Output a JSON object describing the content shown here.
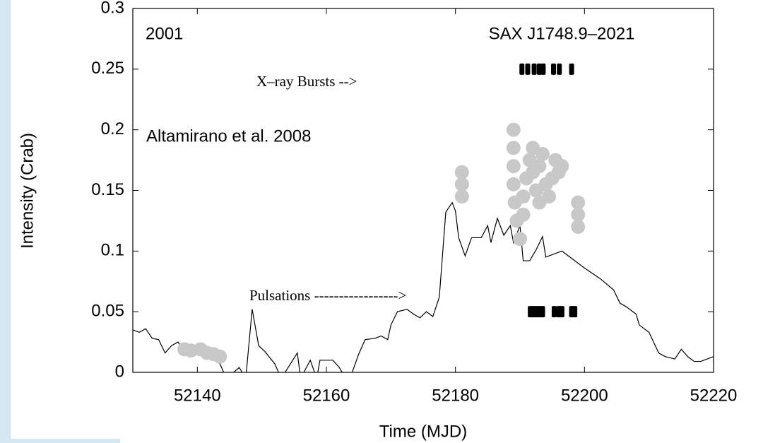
{
  "chart_data": {
    "type": "line",
    "title": "SAX J1748.9–2021",
    "annotations": [
      "2001",
      "Altamirano et al. 2008",
      "X–ray Bursts -->",
      "Pulsations ----------------->"
    ],
    "xlabel": "Time (MJD)",
    "ylabel": "Intensity (Crab)",
    "xlim": [
      52130,
      52220
    ],
    "ylim": [
      0,
      0.3
    ],
    "xticks": [
      52140,
      52160,
      52180,
      52200,
      52220
    ],
    "yticks": [
      0,
      0.05,
      0.1,
      0.15,
      0.2,
      0.25,
      0.3
    ],
    "series": [
      {
        "type": "line",
        "color": "#000000",
        "x": [
          52130,
          52131,
          52132,
          52133,
          52134,
          52135,
          52136,
          52137,
          52138,
          52140,
          52141,
          52142,
          52143.5,
          52144.5,
          52146.5,
          52147.5,
          52148.5,
          52149.5,
          52150.5,
          52152,
          52153,
          52155.5,
          52156,
          52157.5,
          52158.5,
          52159,
          52161,
          52162,
          52163,
          52164,
          52165,
          52166,
          52167.5,
          52168.5,
          52169.5,
          52170,
          52171,
          52172.5,
          52173.5,
          52174.5,
          52175.5,
          52176.5,
          52177.5,
          52178.5,
          52179.5,
          52180,
          52180.5,
          52181.5,
          52182.5,
          52184,
          52185,
          52185.5,
          52186.5,
          52187.5,
          52188.5,
          52189,
          52190,
          52190.5,
          52191.5,
          52192.5,
          52193.5,
          52194,
          52195,
          52196.5,
          52198,
          52200,
          52202.5,
          52204.5,
          52205.5,
          52206.5,
          52208,
          52208.5,
          52210,
          52211.5,
          52212.5,
          52214,
          52215,
          52216,
          52217,
          52218,
          52220
        ],
        "values": [
          0.035,
          0.033,
          0.036,
          0.028,
          0.027,
          0.016,
          0.022,
          0.025,
          0.017,
          0.022,
          0.013,
          0.016,
          0.007,
          -0.005,
          0.004,
          -0.005,
          0.052,
          0.022,
          0.017,
          0.007,
          -0.005,
          0.016,
          -0.005,
          0.01,
          -0.005,
          0.01,
          0.01,
          0.004,
          -0.005,
          0.0,
          0.015,
          0.027,
          0.028,
          0.03,
          0.027,
          0.039,
          0.05,
          0.052,
          0.048,
          0.045,
          0.05,
          0.046,
          0.062,
          0.132,
          0.14,
          0.133,
          0.111,
          0.096,
          0.111,
          0.111,
          0.121,
          0.107,
          0.127,
          0.113,
          0.121,
          0.107,
          0.121,
          0.092,
          0.092,
          0.101,
          0.112,
          0.095,
          0.097,
          0.1,
          0.094,
          0.086,
          0.077,
          0.068,
          0.057,
          0.054,
          0.048,
          0.039,
          0.033,
          0.016,
          0.013,
          0.011,
          0.019,
          0.013,
          0.009,
          0.009,
          0.013
        ]
      },
      {
        "type": "scatter",
        "color": "#c8c8c8",
        "x": [
          52138,
          52139,
          52140.5,
          52141.5,
          52142.5,
          52143.5,
          52181,
          52181,
          52181,
          52189,
          52189,
          52189,
          52189,
          52189.2,
          52189.5,
          52190,
          52190.5,
          52190.5,
          52191,
          52191.5,
          52192,
          52192,
          52192.5,
          52193,
          52193,
          52193.5,
          52194,
          52194.5,
          52195,
          52195.5,
          52196,
          52196.5,
          52199,
          52199,
          52199
        ],
        "values": [
          0.019,
          0.018,
          0.019,
          0.016,
          0.015,
          0.013,
          0.165,
          0.155,
          0.145,
          0.2,
          0.185,
          0.17,
          0.155,
          0.14,
          0.125,
          0.11,
          0.13,
          0.145,
          0.16,
          0.175,
          0.185,
          0.165,
          0.15,
          0.14,
          0.17,
          0.18,
          0.155,
          0.145,
          0.16,
          0.175,
          0.165,
          0.17,
          0.14,
          0.13,
          0.12
        ]
      },
      {
        "type": "marker",
        "color": "#000000",
        "x": [
          52190.3,
          52191.2,
          52192.2,
          52193,
          52193.6,
          52195.2,
          52196.1,
          52198
        ],
        "values": [
          0.25,
          0.25,
          0.25,
          0.25,
          0.25,
          0.25,
          0.25,
          0.25
        ]
      },
      {
        "type": "marker",
        "color": "#000000",
        "x": [
          52191.6,
          52192,
          52192.5,
          52193,
          52193.5,
          52195.3,
          52196,
          52196.5,
          52198,
          52198.5
        ],
        "values": [
          0.05,
          0.05,
          0.05,
          0.05,
          0.05,
          0.05,
          0.05,
          0.05,
          0.05,
          0.05
        ]
      }
    ]
  }
}
